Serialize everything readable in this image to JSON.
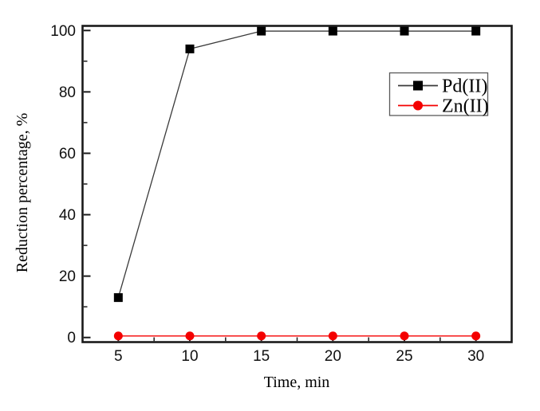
{
  "chart_data": {
    "type": "line",
    "title": "",
    "xlabel": "Time, min",
    "ylabel": "Reduction percentage, %",
    "x": [
      5,
      10,
      15,
      20,
      25,
      30
    ],
    "xlim": [
      2.5,
      32.5
    ],
    "ylim": [
      -1.5,
      101.5
    ],
    "xticks": [
      5,
      10,
      15,
      20,
      25,
      30
    ],
    "yticks": [
      0,
      20,
      40,
      60,
      80,
      100
    ],
    "x_minor_ticks": [
      7.5,
      12.5,
      17.5,
      22.5,
      27.5
    ],
    "y_minor_ticks": [
      10,
      30,
      50,
      70,
      90
    ],
    "grid": false,
    "background_color": "#ffffff",
    "axis_color": "#1a1a1a",
    "legend": {
      "position": "upper-right-inside",
      "border_color": "#5a5a5a"
    },
    "series": [
      {
        "name": "Pd(II)",
        "marker": "square",
        "color": "#000000",
        "line_color": "#3a3a3a",
        "values": [
          13,
          94,
          99.8,
          99.8,
          99.8,
          99.8
        ]
      },
      {
        "name": "Zn(II)",
        "marker": "circle",
        "color": "#f40000",
        "line_color": "#f40000",
        "values": [
          0.5,
          0.5,
          0.5,
          0.5,
          0.5,
          0.5
        ]
      }
    ]
  }
}
